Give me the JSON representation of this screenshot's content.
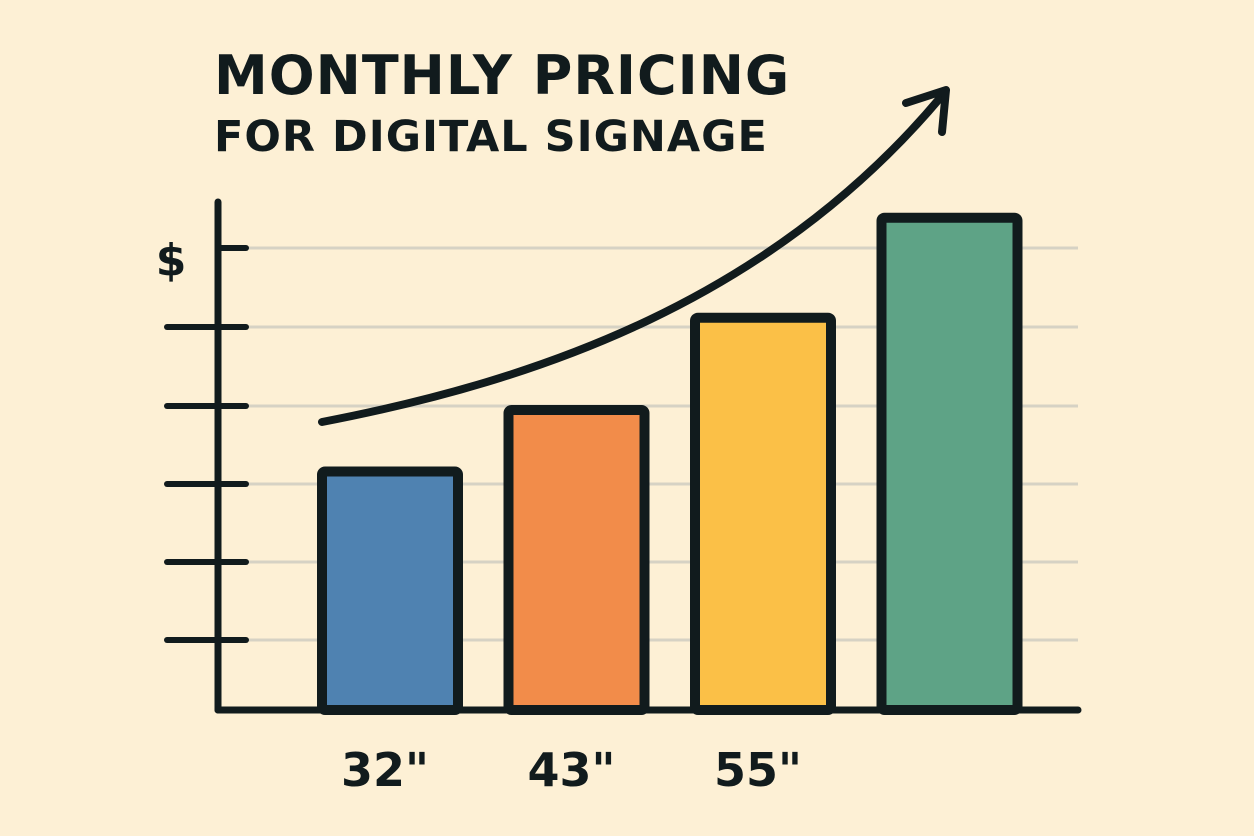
{
  "chart_data": {
    "type": "bar",
    "title": "MONTHLY PRICING",
    "subtitle": "FOR DIGITAL SIGNAGE",
    "ylabel": "$",
    "xlabel": "",
    "categories": [
      "32\"",
      "43\"",
      "55\"",
      ""
    ],
    "values": [
      3.1,
      3.9,
      5.1,
      6.4
    ],
    "ylim": [
      0,
      6.5
    ],
    "yticks_count": 6,
    "grid": true,
    "legend": "none",
    "trend_arrow": true,
    "colors": [
      "#4f82b1",
      "#f28c4a",
      "#fbc047",
      "#5ea386"
    ],
    "ink_color": "#111b1d",
    "background": "#fdf0d5",
    "grid_color": "#d6d2c4"
  }
}
